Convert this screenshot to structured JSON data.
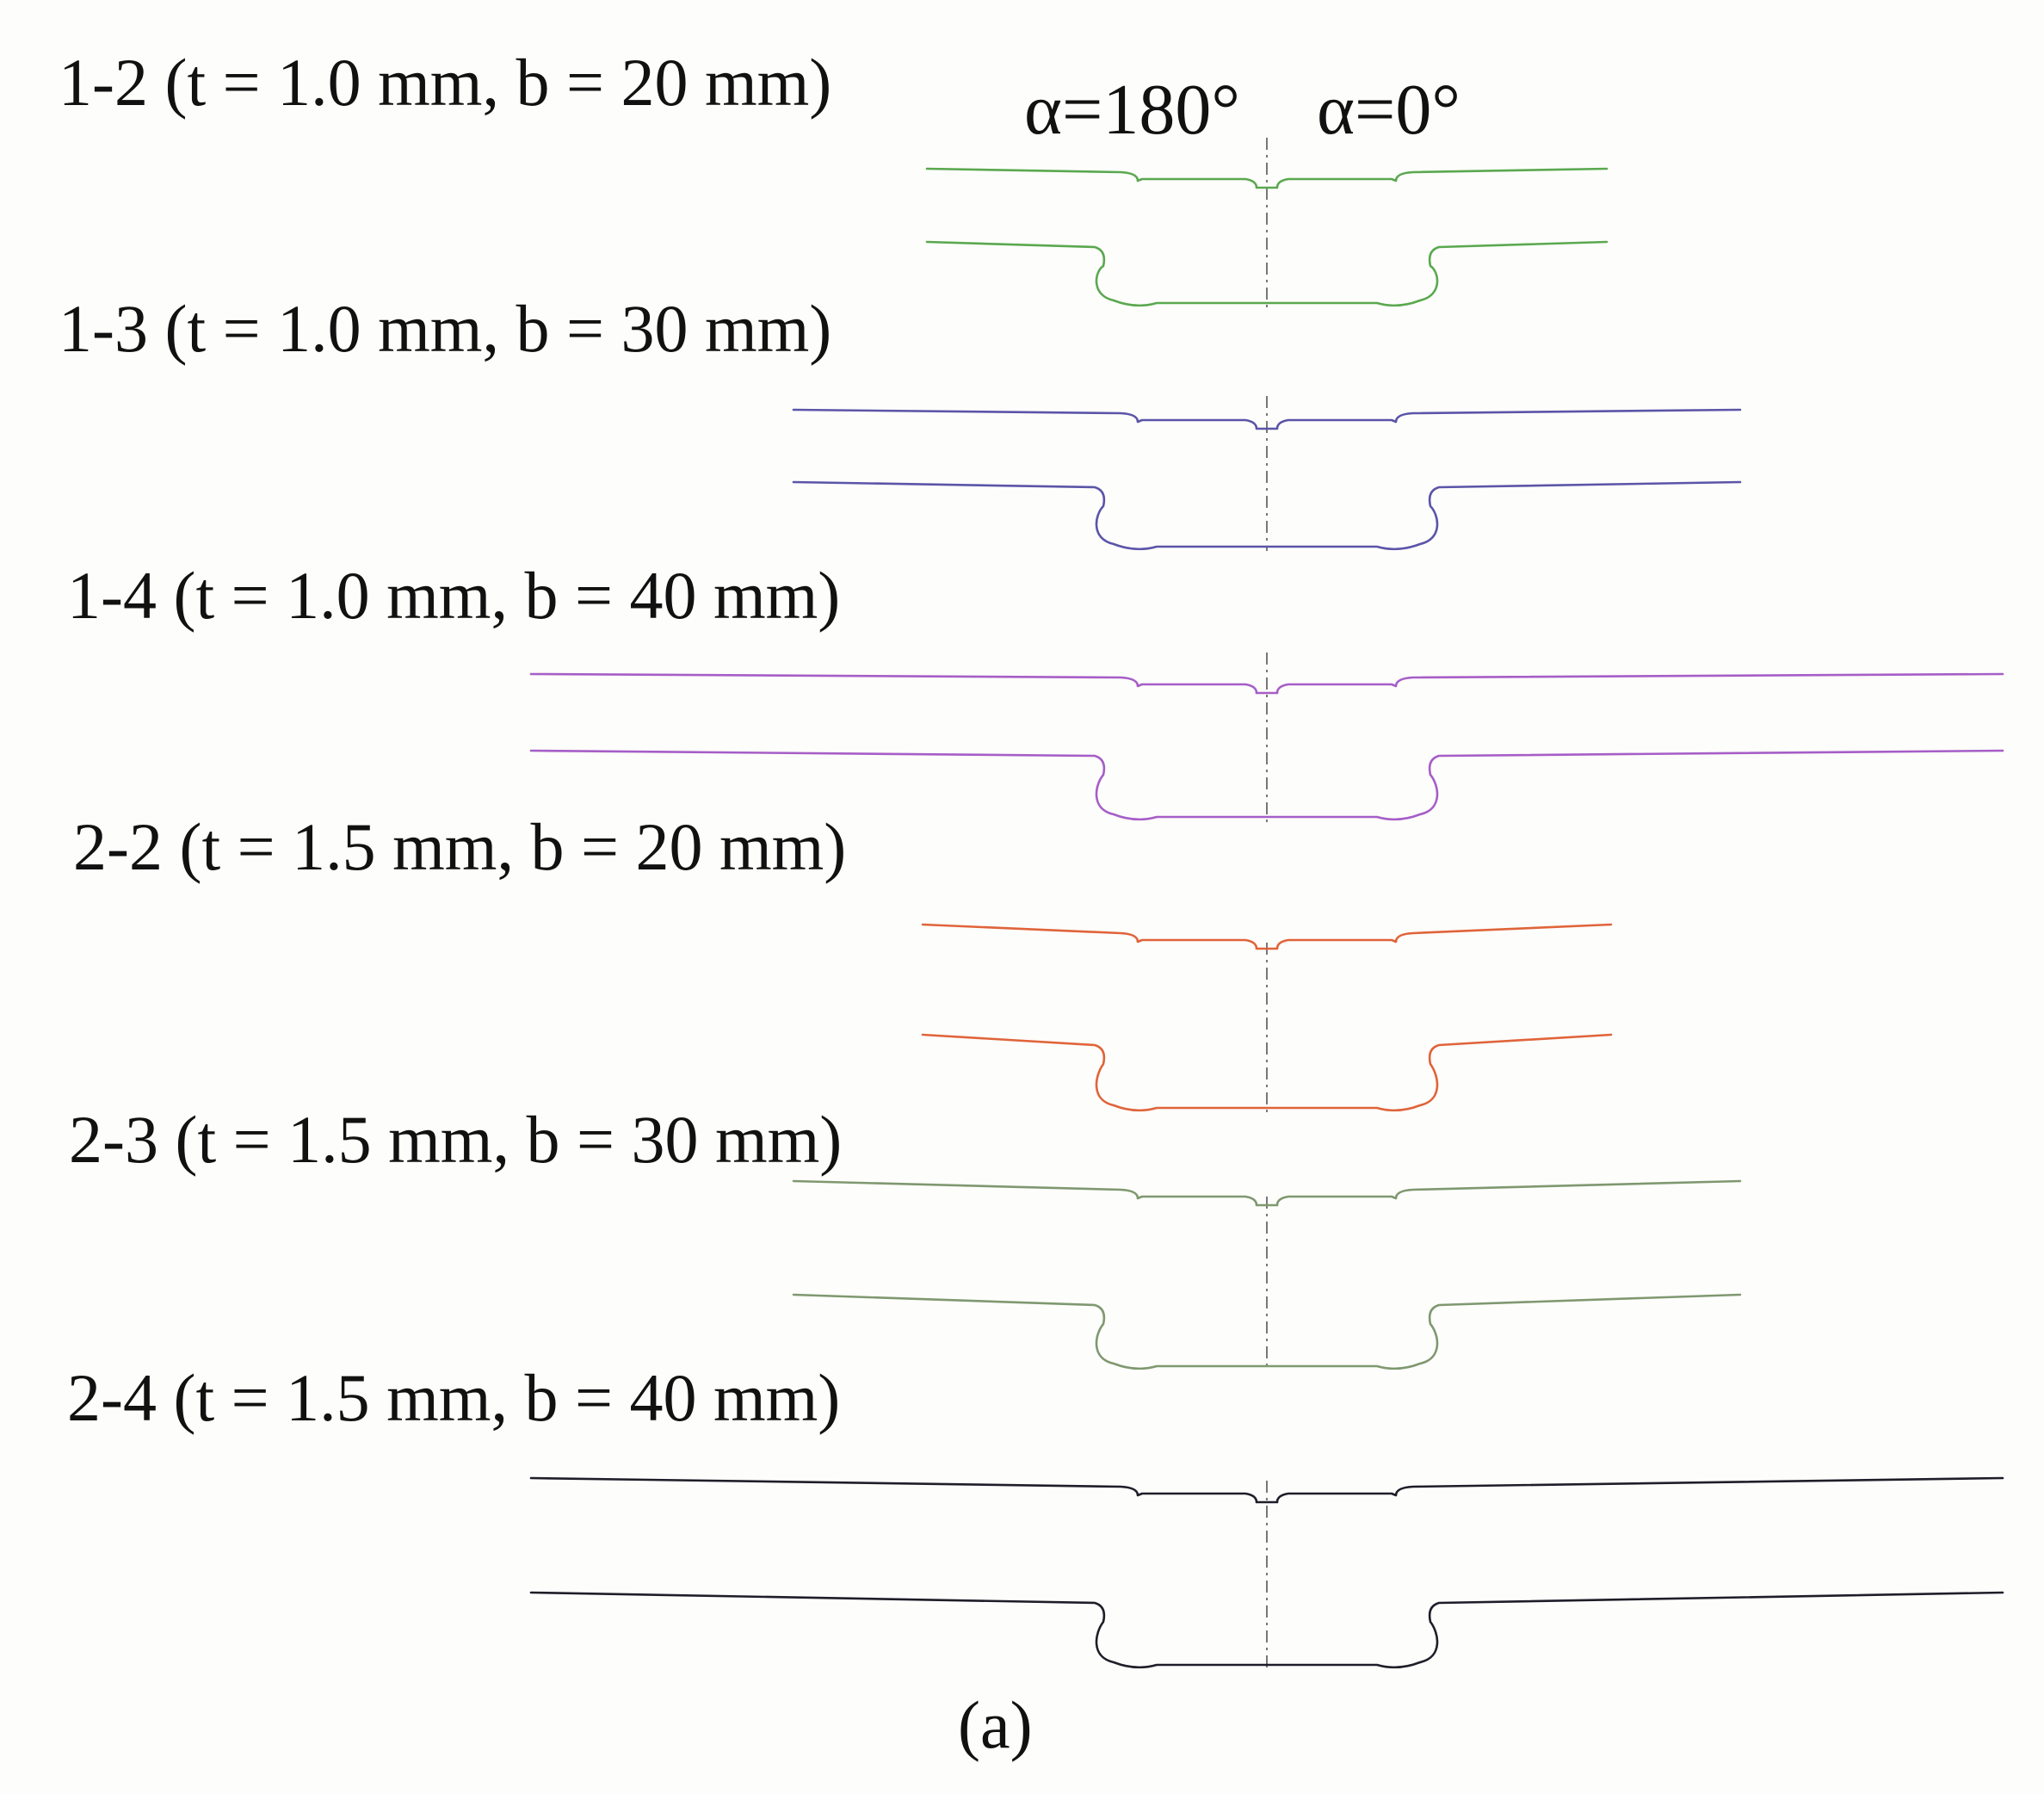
{
  "header": {
    "alpha_left": "α=180°",
    "alpha_right": "α=0°"
  },
  "caption": "(a)",
  "specimens": [
    {
      "label": "1-2 (t = 1.0 mm, b = 20 mm)",
      "color": "#5aa84f"
    },
    {
      "label": "1-3 (t = 1.0 mm, b = 30 mm)",
      "color": "#5b55a8"
    },
    {
      "label": "1-4 (t = 1.0 mm, b = 40 mm)",
      "color": "#a65ec7"
    },
    {
      "label": "2-2 (t = 1.5 mm, b = 20 mm)",
      "color": "#e0643a"
    },
    {
      "label": "2-3 (t = 1.5 mm, b = 30 mm)",
      "color": "#7f9870"
    },
    {
      "label": "2-4 (t = 1.5 mm, b = 40 mm)",
      "color": "#1e1e2a"
    }
  ]
}
